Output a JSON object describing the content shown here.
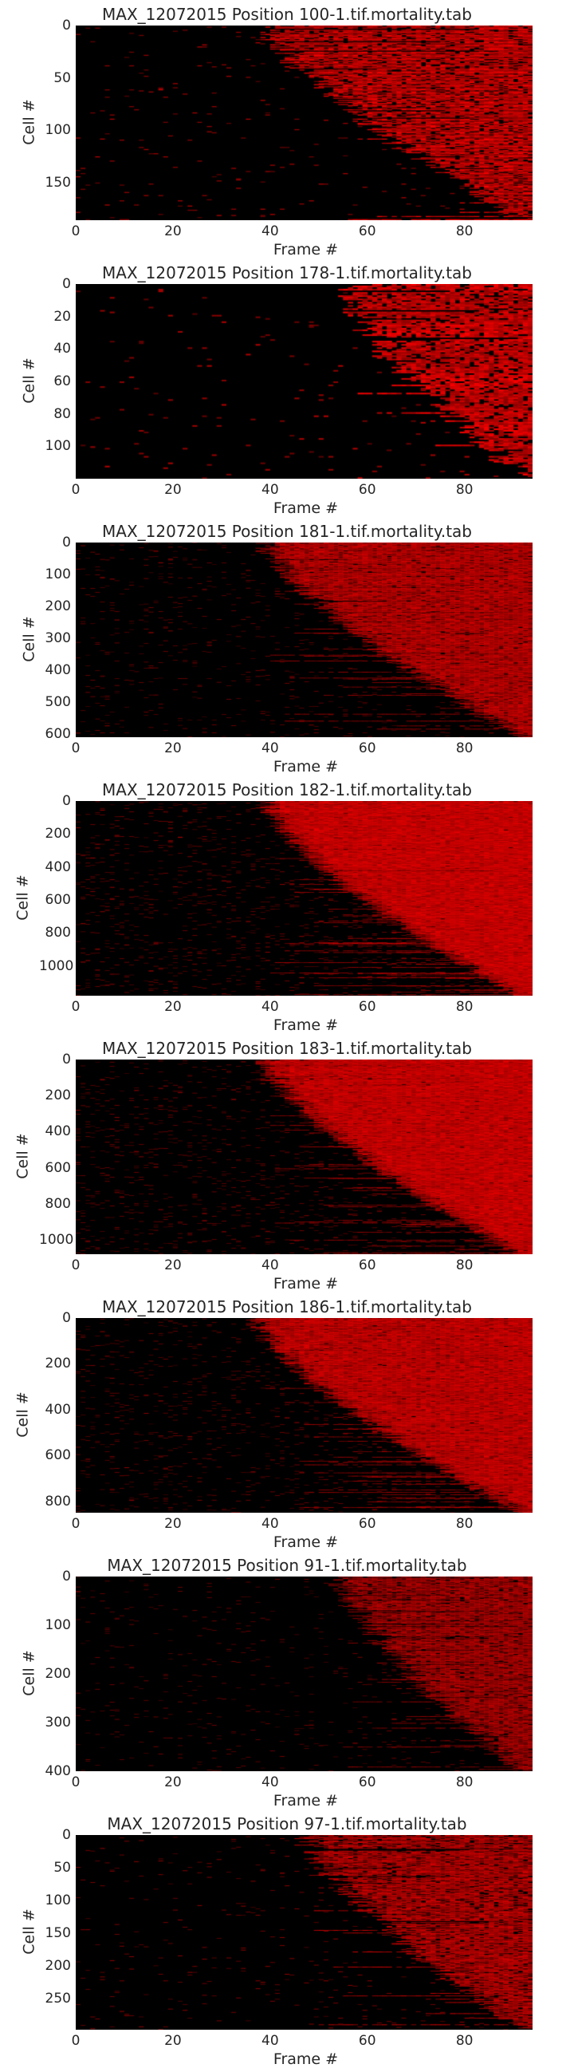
{
  "chart_data": [
    {
      "type": "heatmap",
      "title": "MAX_12072015 Position 100-1.tif.mortality.tab",
      "xlabel": "Frame #",
      "ylabel": "Cell #",
      "xlim": [
        0,
        94
      ],
      "ylim": [
        186,
        0
      ],
      "xticks": [
        0,
        20,
        40,
        60,
        80
      ],
      "yticks": [
        0,
        50,
        100,
        150
      ],
      "colors": {
        "low": "#000000",
        "high": "#ff0000"
      },
      "n_cells": 186,
      "death_frame_range": [
        40,
        93
      ]
    },
    {
      "type": "heatmap",
      "title": "MAX_12072015 Position 178-1.tif.mortality.tab",
      "xlabel": "Frame #",
      "ylabel": "Cell #",
      "xlim": [
        0,
        94
      ],
      "ylim": [
        120,
        0
      ],
      "xticks": [
        0,
        20,
        40,
        60,
        80
      ],
      "yticks": [
        0,
        20,
        40,
        60,
        80,
        100
      ],
      "colors": {
        "low": "#000000",
        "high": "#ff0000"
      },
      "n_cells": 120,
      "death_frame_range": [
        55,
        93
      ]
    },
    {
      "type": "heatmap",
      "title": "MAX_12072015 Position 181-1.tif.mortality.tab",
      "xlabel": "Frame #",
      "ylabel": "Cell #",
      "xlim": [
        0,
        94
      ],
      "ylim": [
        610,
        0
      ],
      "xticks": [
        0,
        20,
        40,
        60,
        80
      ],
      "yticks": [
        0,
        100,
        200,
        300,
        400,
        500,
        600
      ],
      "colors": {
        "low": "#000000",
        "high": "#ff0000"
      },
      "n_cells": 610,
      "death_frame_range": [
        40,
        93
      ]
    },
    {
      "type": "heatmap",
      "title": "MAX_12072015 Position 182-1.tif.mortality.tab",
      "xlabel": "Frame #",
      "ylabel": "Cell #",
      "xlim": [
        0,
        94
      ],
      "ylim": [
        1180,
        0
      ],
      "xticks": [
        0,
        20,
        40,
        60,
        80
      ],
      "yticks": [
        0,
        200,
        400,
        600,
        800,
        1000
      ],
      "colors": {
        "low": "#000000",
        "high": "#ff0000"
      },
      "n_cells": 1180,
      "death_frame_range": [
        40,
        93
      ]
    },
    {
      "type": "heatmap",
      "title": "MAX_12072015 Position 183-1.tif.mortality.tab",
      "xlabel": "Frame #",
      "ylabel": "Cell #",
      "xlim": [
        0,
        94
      ],
      "ylim": [
        1080,
        0
      ],
      "xticks": [
        0,
        20,
        40,
        60,
        80
      ],
      "yticks": [
        0,
        200,
        400,
        600,
        800,
        1000
      ],
      "colors": {
        "low": "#000000",
        "high": "#ff0000"
      },
      "n_cells": 1080,
      "death_frame_range": [
        40,
        93
      ]
    },
    {
      "type": "heatmap",
      "title": "MAX_12072015 Position 186-1.tif.mortality.tab",
      "xlabel": "Frame #",
      "ylabel": "Cell #",
      "xlim": [
        0,
        94
      ],
      "ylim": [
        850,
        0
      ],
      "xticks": [
        0,
        20,
        40,
        60,
        80
      ],
      "yticks": [
        0,
        200,
        400,
        600,
        800
      ],
      "colors": {
        "low": "#000000",
        "high": "#ff0000"
      },
      "n_cells": 850,
      "death_frame_range": [
        38,
        93
      ]
    },
    {
      "type": "heatmap",
      "title": "MAX_12072015 Position 91-1.tif.mortality.tab",
      "xlabel": "Frame #",
      "ylabel": "Cell #",
      "xlim": [
        0,
        94
      ],
      "ylim": [
        400,
        0
      ],
      "xticks": [
        0,
        20,
        40,
        60,
        80
      ],
      "yticks": [
        0,
        100,
        200,
        300,
        400
      ],
      "colors": {
        "low": "#000000",
        "high": "#ff0000"
      },
      "n_cells": 400,
      "death_frame_range": [
        55,
        93
      ]
    },
    {
      "type": "heatmap",
      "title": "MAX_12072015 Position 97-1.tif.mortality.tab",
      "xlabel": "Frame #",
      "ylabel": "Cell #",
      "xlim": [
        0,
        94
      ],
      "ylim": [
        297,
        0
      ],
      "xticks": [
        0,
        20,
        40,
        60,
        80
      ],
      "yticks": [
        0,
        50,
        100,
        150,
        200,
        250
      ],
      "colors": {
        "low": "#000000",
        "high": "#ff0000"
      },
      "n_cells": 297,
      "death_frame_range": [
        48,
        93
      ]
    }
  ]
}
